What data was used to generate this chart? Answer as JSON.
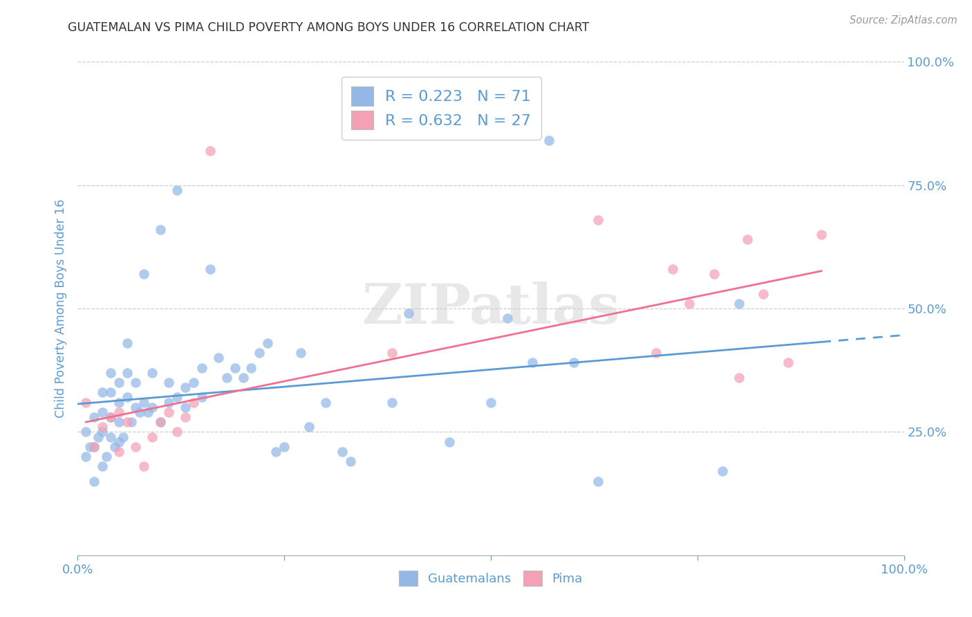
{
  "title": "GUATEMALAN VS PIMA CHILD POVERTY AMONG BOYS UNDER 16 CORRELATION CHART",
  "source": "Source: ZipAtlas.com",
  "ylabel": "Child Poverty Among Boys Under 16",
  "xlim": [
    0,
    1
  ],
  "ylim": [
    0,
    1
  ],
  "guatemalan_color": "#92b8e8",
  "pima_color": "#f4a0b5",
  "blue_line_color": "#5b9bd5",
  "pink_line_color": "#f07090",
  "R_guatemalan": 0.223,
  "N_guatemalan": 71,
  "R_pima": 0.632,
  "N_pima": 27,
  "watermark": "ZIPatlas",
  "title_color": "#333333",
  "axis_label_color": "#5b9bd5",
  "tick_label_color": "#5b9bd5",
  "legend_text_color": "#5b9bd5",
  "grid_color": "#c8c8c8",
  "background_color": "#ffffff",
  "g_x": [
    0.01,
    0.01,
    0.015,
    0.02,
    0.02,
    0.02,
    0.025,
    0.03,
    0.03,
    0.03,
    0.03,
    0.035,
    0.04,
    0.04,
    0.04,
    0.04,
    0.045,
    0.05,
    0.05,
    0.05,
    0.05,
    0.055,
    0.06,
    0.06,
    0.06,
    0.065,
    0.07,
    0.07,
    0.075,
    0.08,
    0.08,
    0.085,
    0.09,
    0.09,
    0.1,
    0.1,
    0.11,
    0.11,
    0.12,
    0.12,
    0.13,
    0.13,
    0.14,
    0.15,
    0.15,
    0.16,
    0.17,
    0.18,
    0.19,
    0.2,
    0.21,
    0.22,
    0.23,
    0.24,
    0.25,
    0.27,
    0.28,
    0.3,
    0.32,
    0.33,
    0.38,
    0.4,
    0.45,
    0.5,
    0.52,
    0.55,
    0.57,
    0.6,
    0.63,
    0.78,
    0.8
  ],
  "g_y": [
    0.25,
    0.2,
    0.22,
    0.15,
    0.22,
    0.28,
    0.24,
    0.18,
    0.25,
    0.29,
    0.33,
    0.2,
    0.24,
    0.28,
    0.33,
    0.37,
    0.22,
    0.23,
    0.27,
    0.31,
    0.35,
    0.24,
    0.32,
    0.37,
    0.43,
    0.27,
    0.3,
    0.35,
    0.29,
    0.31,
    0.57,
    0.29,
    0.3,
    0.37,
    0.27,
    0.66,
    0.31,
    0.35,
    0.32,
    0.74,
    0.3,
    0.34,
    0.35,
    0.32,
    0.38,
    0.58,
    0.4,
    0.36,
    0.38,
    0.36,
    0.38,
    0.41,
    0.43,
    0.21,
    0.22,
    0.41,
    0.26,
    0.31,
    0.21,
    0.19,
    0.31,
    0.49,
    0.23,
    0.31,
    0.48,
    0.39,
    0.84,
    0.39,
    0.15,
    0.17,
    0.51
  ],
  "p_x": [
    0.01,
    0.02,
    0.03,
    0.04,
    0.05,
    0.05,
    0.06,
    0.07,
    0.08,
    0.09,
    0.1,
    0.11,
    0.12,
    0.13,
    0.14,
    0.16,
    0.38,
    0.63,
    0.7,
    0.72,
    0.74,
    0.77,
    0.8,
    0.81,
    0.83,
    0.86,
    0.9
  ],
  "p_y": [
    0.31,
    0.22,
    0.26,
    0.28,
    0.21,
    0.29,
    0.27,
    0.22,
    0.18,
    0.24,
    0.27,
    0.29,
    0.25,
    0.28,
    0.31,
    0.82,
    0.41,
    0.68,
    0.41,
    0.58,
    0.51,
    0.57,
    0.36,
    0.64,
    0.53,
    0.39,
    0.65
  ]
}
